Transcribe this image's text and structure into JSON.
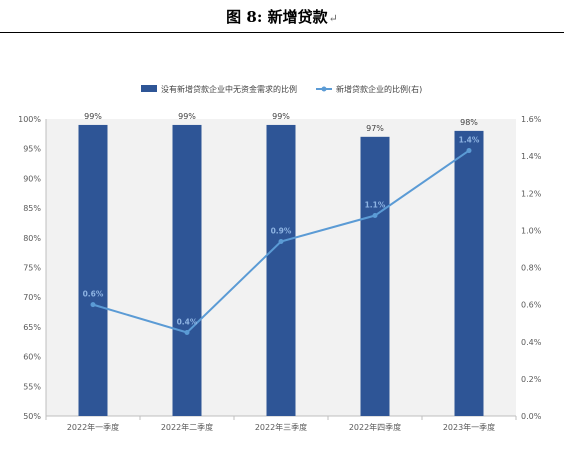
{
  "figure": {
    "title": "图 8:  新增贷款",
    "return_mark": "↵"
  },
  "chart_data": {
    "type": "bar",
    "categories": [
      "2022年一季度",
      "2022年二季度",
      "2022年三季度",
      "2022年四季度",
      "2023年一季度"
    ],
    "series": [
      {
        "name": "没有新增贷款企业中无资金需求的比例",
        "chart": "bar",
        "axis": "left",
        "values": [
          99,
          99,
          99,
          97,
          98
        ],
        "labels": [
          "99%",
          "99%",
          "99%",
          "97%",
          "98%"
        ],
        "color": "#2e5596"
      },
      {
        "name": "新增贷款企业的比例(右)",
        "chart": "line",
        "axis": "right",
        "values": [
          0.6,
          0.45,
          0.94,
          1.08,
          1.43
        ],
        "labels": [
          "0.6%",
          "0.4%",
          "0.9%",
          "1.1%",
          "1.4%"
        ],
        "color": "#5b9bd5"
      }
    ],
    "y_left": {
      "ylim": [
        50,
        100
      ],
      "ticks": [
        50,
        55,
        60,
        65,
        70,
        75,
        80,
        85,
        90,
        95,
        100
      ],
      "tick_labels": [
        "50%",
        "55%",
        "60%",
        "65%",
        "70%",
        "75%",
        "80%",
        "85%",
        "90%",
        "95%",
        "100%"
      ]
    },
    "y_right": {
      "ylim": [
        0,
        1.6
      ],
      "ticks": [
        0,
        0.2,
        0.4,
        0.6,
        0.8,
        1.0,
        1.2,
        1.4,
        1.6
      ],
      "tick_labels": [
        "0.0%",
        "0.2%",
        "0.4%",
        "0.6%",
        "0.8%",
        "1.0%",
        "1.2%",
        "1.4%",
        "1.6%"
      ]
    },
    "grid": false,
    "legend": "top-center",
    "plot_background": "#f2f2f2"
  }
}
